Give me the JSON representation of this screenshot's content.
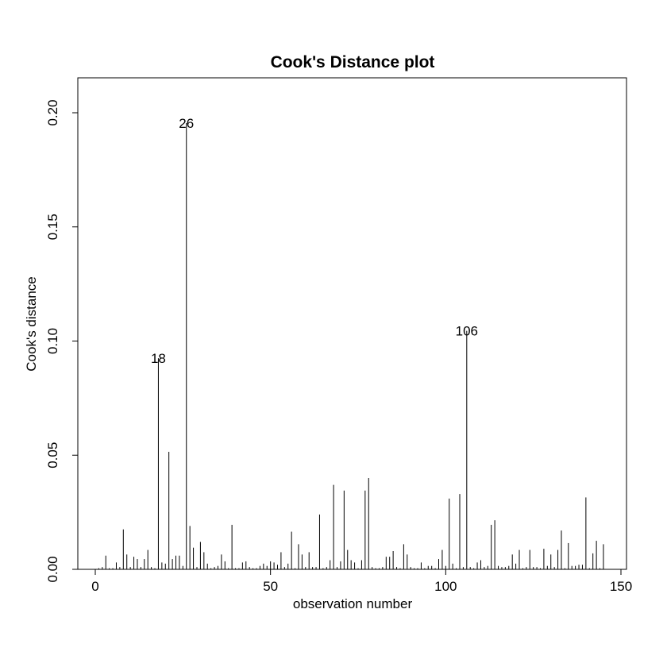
{
  "chart_data": {
    "type": "bar",
    "title": "Cook's Distance plot",
    "xlabel": "observation number",
    "ylabel": "Cook's distance",
    "xlim": [
      -4,
      152
    ],
    "ylim": [
      0,
      0.2
    ],
    "x_ticks": [
      "0",
      "50",
      "100",
      "150"
    ],
    "y_ticks": [
      "0.00",
      "0.05",
      "0.10",
      "0.15",
      "0.20"
    ],
    "grid": false,
    "style": "vertical spikes (type='h')",
    "series": [
      {
        "values": [
          0.0005,
          0.001,
          0.006,
          0.0005,
          0.0005,
          0.003,
          0.001,
          0.0175,
          0.0065,
          0.001,
          0.0055,
          0.0045,
          0.001,
          0.0045,
          0.0085,
          0.001,
          0.0005,
          0.0925,
          0.003,
          0.0025,
          0.0515,
          0.0045,
          0.006,
          0.006,
          0.0015,
          0.1955,
          0.019,
          0.0095,
          0.001,
          0.012,
          0.0075,
          0.0025,
          0.0005,
          0.001,
          0.0015,
          0.0065,
          0.0035,
          0.0005,
          0.0195,
          0.0005,
          0.0005,
          0.003,
          0.0035,
          0.001,
          0.0005,
          0.0005,
          0.0015,
          0.0025,
          0.0015,
          0.0035,
          0.003,
          0.002,
          0.0075,
          0.001,
          0.0025,
          0.0165,
          0.0005,
          0.011,
          0.0065,
          0.001,
          0.0075,
          0.001,
          0.001,
          0.024,
          0.0005,
          0.001,
          0.004,
          0.037,
          0.001,
          0.0035,
          0.0345,
          0.0085,
          0.004,
          0.003,
          0.0005,
          0.004,
          0.0345,
          0.04,
          0.001,
          0.0005,
          0.0005,
          0.001,
          0.0055,
          0.0055,
          0.008,
          0.001,
          0.0005,
          0.011,
          0.0065,
          0.001,
          0.0005,
          0.0005,
          0.003,
          0.0005,
          0.0015,
          0.0015,
          0.0005,
          0.0045,
          0.0085,
          0.0015,
          0.031,
          0.0025,
          0.0005,
          0.033,
          0.001,
          0.1045,
          0.001,
          0.0005,
          0.003,
          0.004,
          0.001,
          0.0015,
          0.0195,
          0.0215,
          0.0015,
          0.001,
          0.001,
          0.0015,
          0.0065,
          0.0025,
          0.0085,
          0.0005,
          0.001,
          0.0085,
          0.001,
          0.001,
          0.0005,
          0.009,
          0.0015,
          0.0065,
          0.001,
          0.0085,
          0.017,
          0.0005,
          0.0115,
          0.0015,
          0.0015,
          0.002,
          0.002,
          0.0315,
          0.0005,
          0.007,
          0.0125,
          0.0005,
          0.011
        ]
      }
    ],
    "annotations": [
      {
        "index": 18,
        "label": "18"
      },
      {
        "index": 26,
        "label": "26"
      },
      {
        "index": 106,
        "label": "106"
      }
    ]
  }
}
